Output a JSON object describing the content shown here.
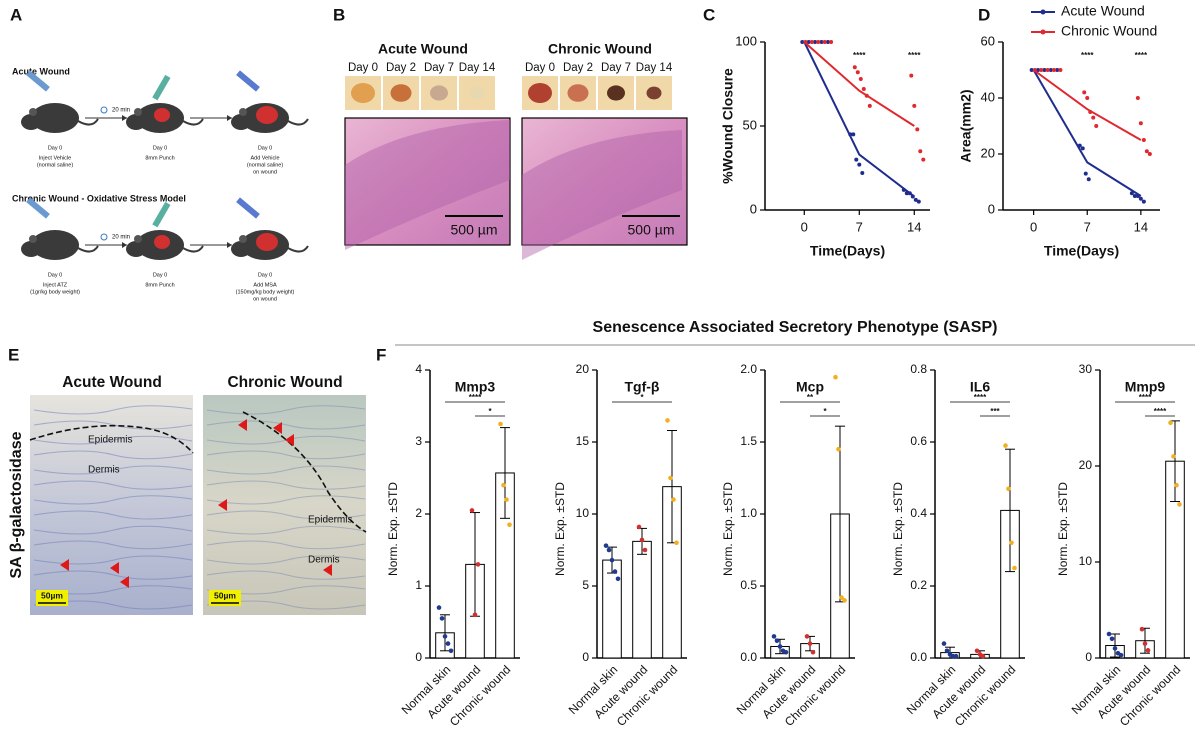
{
  "panel_labels": [
    "A",
    "B",
    "C",
    "D",
    "E",
    "F"
  ],
  "panel_a": {
    "rows": [
      {
        "title": "Acute Wound",
        "timer": "20 min",
        "steps": [
          {
            "day": "Day 0",
            "label": [
              "Inject Vehicle",
              "(normal saline)"
            ]
          },
          {
            "day": "Day 0",
            "label": [
              "8mm Punch"
            ]
          },
          {
            "day": "Day 0",
            "label": [
              "Add Vehicle",
              "(normal saline)",
              "on wound"
            ]
          }
        ]
      },
      {
        "title": "Chronic Wound - Oxidative Stress Model",
        "timer": "20 min",
        "steps": [
          {
            "day": "Day 0",
            "label": [
              "Inject ATZ",
              "(1gr/kg body weight)"
            ]
          },
          {
            "day": "Day 0",
            "label": [
              "8mm Punch"
            ]
          },
          {
            "day": "Day 0",
            "label": [
              "Add MSA",
              "(150mg/kg body weight)",
              "on wound"
            ]
          }
        ]
      }
    ]
  },
  "panel_b": {
    "groups": [
      {
        "title": "Acute Wound",
        "days": [
          "Day 0",
          "Day 2",
          "Day 7",
          "Day 14"
        ],
        "scale": "500 µm"
      },
      {
        "title": "Chronic Wound",
        "days": [
          "Day 0",
          "Day 2",
          "Day 7",
          "Day 14"
        ],
        "scale": "500 µm"
      }
    ]
  },
  "panel_e": {
    "stain": "SA β-galactosidase",
    "images": [
      {
        "title": "Acute Wound",
        "labels": [
          "Epidermis",
          "Dermis"
        ],
        "scale": "50µm"
      },
      {
        "title": "Chronic Wound",
        "labels": [
          "Epidermis",
          "Dermis"
        ],
        "scale": "50µm"
      }
    ]
  },
  "sasp_title": "Senescence Associated Secretory Phenotype (SASP)",
  "chart_data": [
    {
      "type": "line",
      "ylabel": "%Wound Closure",
      "xlabel": "Time(Days)",
      "x": [
        0,
        7,
        14
      ],
      "xlim": [
        -5,
        16
      ],
      "xticks": [
        0,
        7,
        14
      ],
      "ylim": [
        0,
        100
      ],
      "yticks": [
        0,
        50,
        100
      ],
      "series": [
        {
          "name": "Acute Wound",
          "color": "#1f2d8f",
          "values": [
            100,
            33,
            8
          ],
          "dots": [
            [
              100,
              100,
              100,
              100,
              100
            ],
            [
              45,
              45,
              30,
              27,
              22
            ],
            [
              12,
              10,
              10,
              8,
              6,
              5
            ]
          ]
        },
        {
          "name": "Chronic Wound",
          "color": "#e0282e",
          "values": [
            100,
            71,
            50
          ],
          "dots": [
            [
              100,
              100,
              100,
              100,
              100
            ],
            [
              85,
              82,
              78,
              72,
              68,
              62
            ],
            [
              80,
              62,
              48,
              35,
              30
            ]
          ]
        }
      ],
      "annotations": [
        {
          "x": 7,
          "label": "****"
        },
        {
          "x": 14,
          "label": "****"
        }
      ]
    },
    {
      "type": "line",
      "ylabel": "Area(mm2)",
      "xlabel": "Time(Days)",
      "x": [
        0,
        7,
        14
      ],
      "xlim": [
        -4,
        16.5
      ],
      "xticks": [
        0,
        7,
        14
      ],
      "ylim": [
        0,
        60
      ],
      "yticks": [
        0,
        20,
        40,
        60
      ],
      "legend": "upper right",
      "series": [
        {
          "name": "Acute Wound",
          "color": "#1f2d8f",
          "values": [
            50,
            17,
            5
          ],
          "dots": [
            [
              50,
              50,
              50,
              50,
              50
            ],
            [
              23,
              22,
              13,
              11
            ],
            [
              6,
              5,
              5,
              4,
              3
            ]
          ]
        },
        {
          "name": "Chronic Wound",
          "color": "#e0282e",
          "values": [
            50,
            36,
            25
          ],
          "dots": [
            [
              50,
              50,
              50,
              50,
              50
            ],
            [
              42,
              40,
              35,
              33,
              30
            ],
            [
              40,
              31,
              25,
              21,
              20
            ]
          ]
        }
      ],
      "annotations": [
        {
          "x": 7,
          "label": "****"
        },
        {
          "x": 14,
          "label": "****"
        }
      ]
    },
    {
      "type": "bar",
      "title": "Mmp3",
      "ylabel": "Norm. Exp. ±STD",
      "categories": [
        "Normal skin",
        "Acute wound",
        "Chronic wound"
      ],
      "dot_colors": [
        "#1f3a8f",
        "#d03030",
        "#f0b020"
      ],
      "values": [
        0.35,
        1.3,
        2.57
      ],
      "errors": [
        0.25,
        0.72,
        0.63
      ],
      "dots": [
        [
          0.7,
          0.55,
          0.3,
          0.2,
          0.1
        ],
        [
          2.05,
          0.6,
          1.3
        ],
        [
          3.25,
          2.4,
          2.2,
          1.85
        ]
      ],
      "ylim": [
        0,
        4
      ],
      "yticks": [
        0,
        1,
        2,
        3,
        4
      ],
      "brackets": [
        {
          "label": "****",
          "span": [
            "Normal skin",
            "Chronic wound"
          ]
        },
        {
          "label": "*",
          "span": [
            "Acute wound",
            "Chronic wound"
          ]
        }
      ]
    },
    {
      "type": "bar",
      "title": "Tgf-β",
      "ylabel": "Norm. Exp. ±STD",
      "categories": [
        "Normal skin",
        "Acute wound",
        "Chronic wound"
      ],
      "dot_colors": [
        "#1f3a8f",
        "#d03030",
        "#f0b020"
      ],
      "values": [
        6.8,
        8.1,
        11.9
      ],
      "errors": [
        0.9,
        0.9,
        3.9
      ],
      "dots": [
        [
          7.8,
          7.5,
          6.8,
          6,
          5.5
        ],
        [
          9.1,
          8.2,
          7.5
        ],
        [
          16.5,
          12.5,
          11,
          8
        ]
      ],
      "ylim": [
        0,
        20
      ],
      "yticks": [
        0,
        5,
        10,
        15,
        20
      ],
      "brackets": [
        {
          "label": "*",
          "span": [
            "Normal skin",
            "Chronic wound"
          ]
        }
      ]
    },
    {
      "type": "bar",
      "title": "Mcp",
      "ylabel": "Norm. Exp. ±STD",
      "categories": [
        "Normal skin",
        "Acute wound",
        "Chronic wound"
      ],
      "dot_colors": [
        "#1f3a8f",
        "#d03030",
        "#f0b020"
      ],
      "values": [
        0.08,
        0.1,
        1.0
      ],
      "errors": [
        0.05,
        0.05,
        0.61
      ],
      "dots": [
        [
          0.15,
          0.12,
          0.08,
          0.05,
          0.04
        ],
        [
          0.15,
          0.1,
          0.04
        ],
        [
          1.95,
          1.45,
          0.42,
          0.4
        ]
      ],
      "ylim": [
        0,
        2
      ],
      "yticks": [
        {
          "value": 0,
          "label": "0.0"
        },
        0.5,
        {
          "value": 1,
          "label": "1.0"
        },
        1.5,
        {
          "value": 2,
          "label": "2.0"
        }
      ],
      "brackets": [
        {
          "label": "**",
          "span": [
            "Normal skin",
            "Chronic wound"
          ]
        },
        {
          "label": "*",
          "span": [
            "Acute wound",
            "Chronic wound"
          ]
        }
      ]
    },
    {
      "type": "bar",
      "title": "IL6",
      "ylabel": "Norm. Exp. ±STD",
      "categories": [
        "Normal skin",
        "Acute wound",
        "Chronic wound"
      ],
      "dot_colors": [
        "#1f3a8f",
        "#d03030",
        "#f0b020"
      ],
      "values": [
        0.015,
        0.01,
        0.41
      ],
      "errors": [
        0.015,
        0.01,
        0.17
      ],
      "dots": [
        [
          0.04,
          0.02,
          0.01,
          0.005,
          0.005
        ],
        [
          0.02,
          0.01,
          0.005
        ],
        [
          0.59,
          0.47,
          0.32,
          0.25
        ]
      ],
      "ylim": [
        0,
        0.8
      ],
      "yticks": [
        {
          "value": 0,
          "label": "0.0"
        },
        0.2,
        0.4,
        0.6,
        0.8
      ],
      "brackets": [
        {
          "label": "****",
          "span": [
            "Normal skin",
            "Chronic wound"
          ]
        },
        {
          "label": "***",
          "span": [
            "Acute wound",
            "Chronic wound"
          ]
        }
      ]
    },
    {
      "type": "bar",
      "title": "Mmp9",
      "ylabel": "Norm. Exp. ±STD",
      "categories": [
        "Normal skin",
        "Acute wound",
        "Chronic wound"
      ],
      "dot_colors": [
        "#1f3a8f",
        "#d03030",
        "#f0b020"
      ],
      "values": [
        1.3,
        1.8,
        20.5
      ],
      "errors": [
        1.2,
        1.3,
        4.2
      ],
      "dots": [
        [
          2.5,
          2,
          1,
          0.5,
          0.3
        ],
        [
          3,
          1.5,
          0.8
        ],
        [
          24.5,
          21,
          18,
          16
        ]
      ],
      "ylim": [
        0,
        30
      ],
      "yticks": [
        0,
        10,
        20,
        30
      ],
      "brackets": [
        {
          "label": "****",
          "span": [
            "Normal skin",
            "Chronic wound"
          ]
        },
        {
          "label": "****",
          "span": [
            "Acute wound",
            "Chronic wound"
          ]
        }
      ]
    }
  ]
}
